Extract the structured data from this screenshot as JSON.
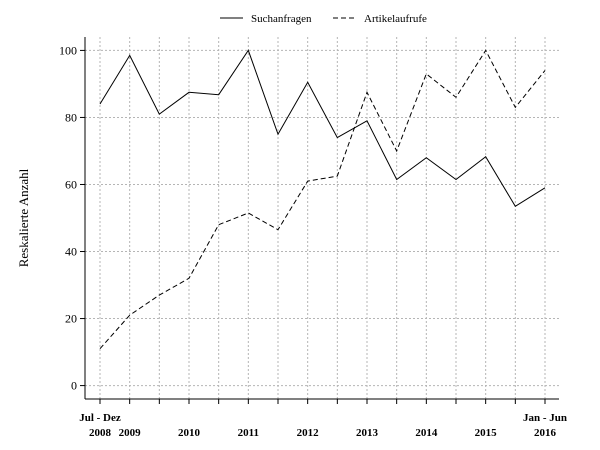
{
  "chart_data": {
    "type": "line",
    "ylabel": "Reskalierte Anzahl",
    "xlabel": "",
    "ylim": [
      -4,
      104
    ],
    "yticks": [
      0,
      20,
      40,
      60,
      80,
      100
    ],
    "grid": true,
    "legend_position": "top",
    "x": [
      0,
      1,
      2,
      3,
      4,
      5,
      6,
      7,
      8,
      9,
      10,
      11,
      12,
      13,
      14,
      15
    ],
    "series": [
      {
        "name": "Suchanfragen",
        "line_style": "solid",
        "color": "#000000",
        "values": [
          84,
          98.5,
          81,
          87.5,
          86.8,
          100,
          75,
          90.5,
          74,
          79,
          61.5,
          68,
          61.5,
          68.3,
          53.5,
          59
        ]
      },
      {
        "name": "Artikelaufrufe",
        "line_style": "dashed",
        "color": "#000000",
        "values": [
          11,
          21,
          27,
          32,
          48,
          51.5,
          46.5,
          61,
          62.5,
          87.5,
          70,
          93,
          86,
          100,
          83,
          94
        ]
      }
    ],
    "x_tick_labels_top": [
      {
        "i": 0,
        "text": "Jul - Dez"
      },
      {
        "i": 15,
        "text": "Jan - Jun"
      }
    ],
    "x_tick_labels_year": [
      {
        "i": 0,
        "text": "2008"
      },
      {
        "i": 1,
        "text": "2009"
      },
      {
        "i": 3,
        "text": "2010"
      },
      {
        "i": 5,
        "text": "2011"
      },
      {
        "i": 7,
        "text": "2012"
      },
      {
        "i": 9,
        "text": "2013"
      },
      {
        "i": 11,
        "text": "2014"
      },
      {
        "i": 13,
        "text": "2015"
      },
      {
        "i": 15,
        "text": "2016"
      }
    ]
  }
}
